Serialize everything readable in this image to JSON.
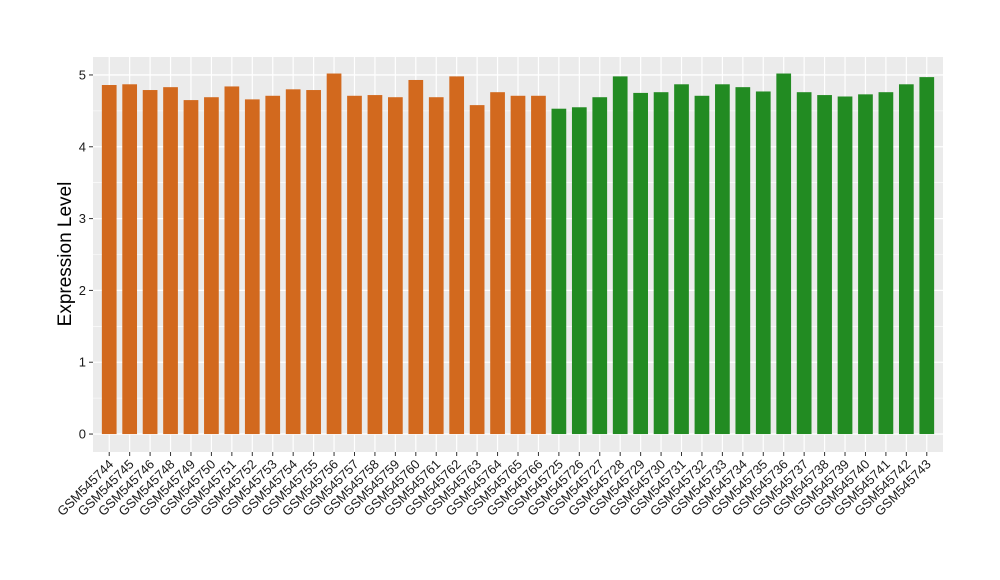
{
  "chart_data": {
    "type": "bar",
    "title": "",
    "xlabel": "",
    "ylabel": "Expression Level",
    "ylim": [
      -0.25,
      5.25
    ],
    "yticks": [
      0,
      1,
      2,
      3,
      4,
      5
    ],
    "grid": true,
    "legend": "none",
    "categories": [
      "GSM545744",
      "GSM545745",
      "GSM545746",
      "GSM545748",
      "GSM545749",
      "GSM545750",
      "GSM545751",
      "GSM545752",
      "GSM545753",
      "GSM545754",
      "GSM545755",
      "GSM545756",
      "GSM545757",
      "GSM545758",
      "GSM545759",
      "GSM545760",
      "GSM545761",
      "GSM545762",
      "GSM545763",
      "GSM545764",
      "GSM545765",
      "GSM545766",
      "GSM545725",
      "GSM545726",
      "GSM545727",
      "GSM545728",
      "GSM545729",
      "GSM545730",
      "GSM545731",
      "GSM545732",
      "GSM545733",
      "GSM545734",
      "GSM545735",
      "GSM545736",
      "GSM545737",
      "GSM545738",
      "GSM545739",
      "GSM545740",
      "GSM545741",
      "GSM545742",
      "GSM545743"
    ],
    "values": [
      4.86,
      4.87,
      4.79,
      4.83,
      4.65,
      4.69,
      4.84,
      4.66,
      4.71,
      4.8,
      4.79,
      5.02,
      4.71,
      4.72,
      4.69,
      4.93,
      4.69,
      4.98,
      4.58,
      4.76,
      4.71,
      4.71,
      4.53,
      4.55,
      4.69,
      4.98,
      4.75,
      4.76,
      4.87,
      4.71,
      4.87,
      4.83,
      4.77,
      5.02,
      4.76,
      4.72,
      4.7,
      4.73,
      4.76,
      4.87,
      4.97
    ],
    "groups": [
      {
        "color": "#D2691E",
        "count": 22
      },
      {
        "color": "#228B22",
        "count": 19
      }
    ],
    "colors": {
      "panel_background": "#EBEBEB",
      "grid_line": "#FFFFFF",
      "text": "#1A1A1A"
    }
  }
}
